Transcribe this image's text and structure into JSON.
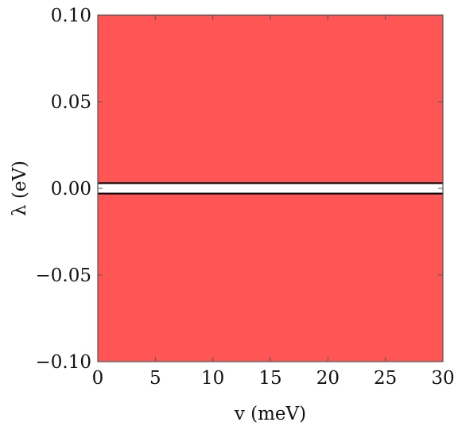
{
  "chart_data": {
    "type": "area",
    "title": "",
    "xlabel": "v (meV)",
    "ylabel": "λ (eV)",
    "xlim": [
      0,
      30
    ],
    "ylim": [
      -0.1,
      0.1
    ],
    "x_ticks": [
      0,
      5,
      10,
      15,
      20,
      25,
      30
    ],
    "x_tick_labels": [
      "0",
      "5",
      "10",
      "15",
      "20",
      "25",
      "30"
    ],
    "y_ticks": [
      -0.1,
      -0.05,
      0.0,
      0.05,
      0.1
    ],
    "y_tick_labels": [
      "−0.10",
      "−0.05",
      "0.00",
      "0.05",
      "0.10"
    ],
    "grid": false,
    "fill_color": "#ff5555",
    "boundary_color": "#000000",
    "regions": [
      {
        "y_range": [
          0.003,
          0.1
        ],
        "filled": true
      },
      {
        "y_range": [
          -0.003,
          0.003
        ],
        "filled": false
      },
      {
        "y_range": [
          -0.1,
          -0.003
        ],
        "filled": true
      }
    ],
    "boundary_lines": [
      0.003,
      -0.003
    ]
  }
}
